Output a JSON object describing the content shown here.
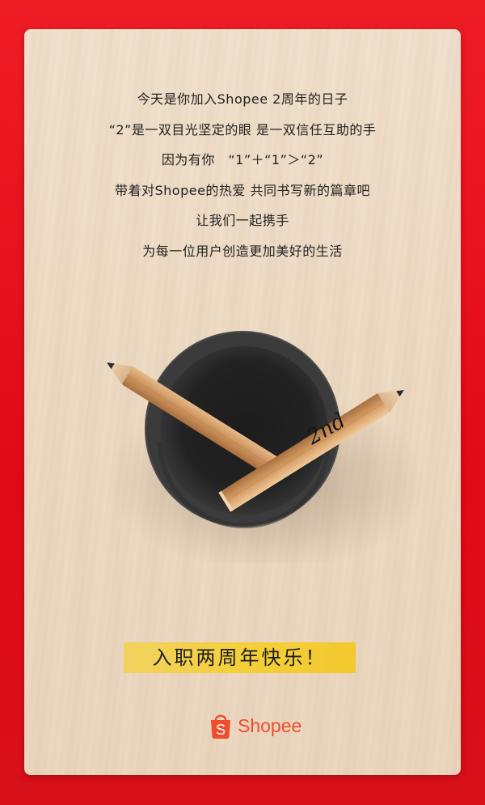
{
  "message": {
    "lines": [
      "今天是你加入Shopee 2周年的日子",
      "“2”是一双目光坚定的眼 是一双信任互助的手",
      "因为有你　“1”＋“1”＞“2”",
      "带着对Shopee的热爱 共同书写新的篇章吧",
      "让我们一起携手",
      "为每一位用户创造更加美好的生活"
    ]
  },
  "illustration": {
    "pencil_mark": "2nd"
  },
  "banner": {
    "text": "入职两周年快乐！"
  },
  "logo": {
    "bag_letter": "S",
    "wordmark": "Shopee"
  },
  "colors": {
    "frame_red": "#e60012",
    "brand_orange": "#ee4d2d",
    "banner_yellow": "#f5cf3a",
    "cup_dark": "#2b2b2b"
  },
  "icons": [
    "shopee-bag-icon",
    "pencil-icon",
    "pencil-cup-icon"
  ]
}
